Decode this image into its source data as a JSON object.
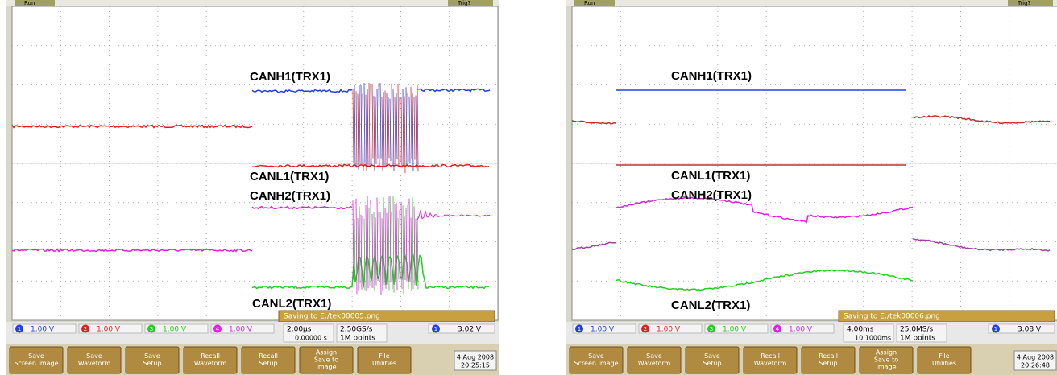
{
  "scopes": [
    {
      "status": "Run",
      "trigger_state": "Trig?",
      "labels": [
        "CANH1(TRX1)",
        "CANL1(TRX1)",
        "CANH2(TRX1)",
        "CANL2(TRX1)"
      ],
      "channels": [
        {
          "number": "1",
          "scale": "1.00 V"
        },
        {
          "number": "2",
          "scale": "1.00 V"
        },
        {
          "number": "3",
          "scale": "1.00 V"
        },
        {
          "number": "4",
          "scale": "1.00 V"
        }
      ],
      "timebase": "2.00µs",
      "delay": "0.00000 s",
      "sample_rate": "2.50GS/s",
      "record_length": "1M points",
      "trigger_channel": "1",
      "trigger_level": "3.02 V",
      "message": "Saving to E:/tek00005.png",
      "buttons": [
        [
          "Save",
          "Screen Image"
        ],
        [
          "Save",
          "Waveform"
        ],
        [
          "Save",
          "Setup"
        ],
        [
          "Recall",
          "Waveform"
        ],
        [
          "Recall",
          "Setup"
        ],
        [
          "Assign",
          "Save to",
          "Image"
        ],
        [
          "File",
          "Utilities"
        ]
      ],
      "date": "4 Aug 2008",
      "time": "20:25:15"
    },
    {
      "status": "Run",
      "trigger_state": "Trig?",
      "labels": [
        "CANH1(TRX1)",
        "CANL1(TRX1)",
        "CANH2(TRX1)",
        "CANL2(TRX1)"
      ],
      "channels": [
        {
          "number": "1",
          "scale": "1.00 V"
        },
        {
          "number": "2",
          "scale": "1.00 V"
        },
        {
          "number": "3",
          "scale": "1.00 V"
        },
        {
          "number": "4",
          "scale": "1.00 V"
        }
      ],
      "timebase": "4.00ms",
      "delay": "10.1000ms",
      "sample_rate": "25.0MS/s",
      "record_length": "1M points",
      "trigger_channel": "1",
      "trigger_level": "3.08 V",
      "message": "Saving to E:/tek00006.png",
      "buttons": [
        [
          "Save",
          "Screen Image"
        ],
        [
          "Save",
          "Waveform"
        ],
        [
          "Save",
          "Setup"
        ],
        [
          "Recall",
          "Waveform"
        ],
        [
          "Recall",
          "Setup"
        ],
        [
          "Assign",
          "Save to",
          "Image"
        ],
        [
          "File",
          "Utilities"
        ]
      ],
      "date": "4 Aug 2008",
      "time": "20:26:48"
    }
  ]
}
